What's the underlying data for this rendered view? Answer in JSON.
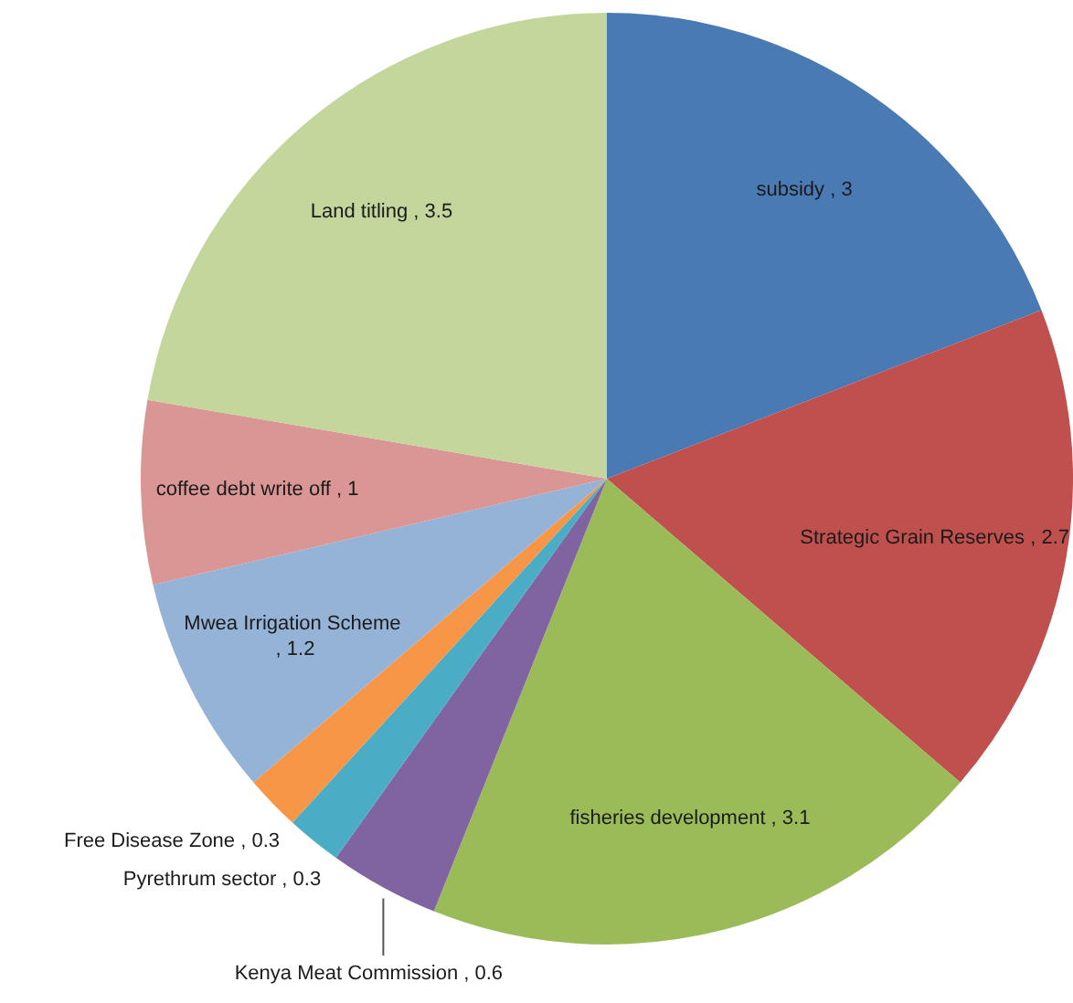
{
  "chart_data": {
    "type": "pie",
    "categories": [
      "subsidy",
      "Strategic Grain Reserves",
      "fisheries development",
      "Kenya Meat Commission",
      "Pyrethrum sector",
      "Free Disease Zone",
      "Mwea Irrigation Scheme",
      "coffee debt write off",
      "Land titling"
    ],
    "values": [
      3,
      2.7,
      3.1,
      0.6,
      0.3,
      0.3,
      1.2,
      1,
      3.5
    ],
    "value_labels": [
      ", 3",
      ", 2.7",
      ", 3.1",
      ", 0.6",
      ", 0.3",
      ", 0.3",
      ", 1.2",
      ", 1",
      ", 3.5"
    ],
    "colors": [
      "#4a7ab4",
      "#c0504d",
      "#9bbb59",
      "#8064a2",
      "#4bacc6",
      "#f79646",
      "#95b3d7",
      "#d99694",
      "#c3d69b"
    ],
    "legend": false
  }
}
